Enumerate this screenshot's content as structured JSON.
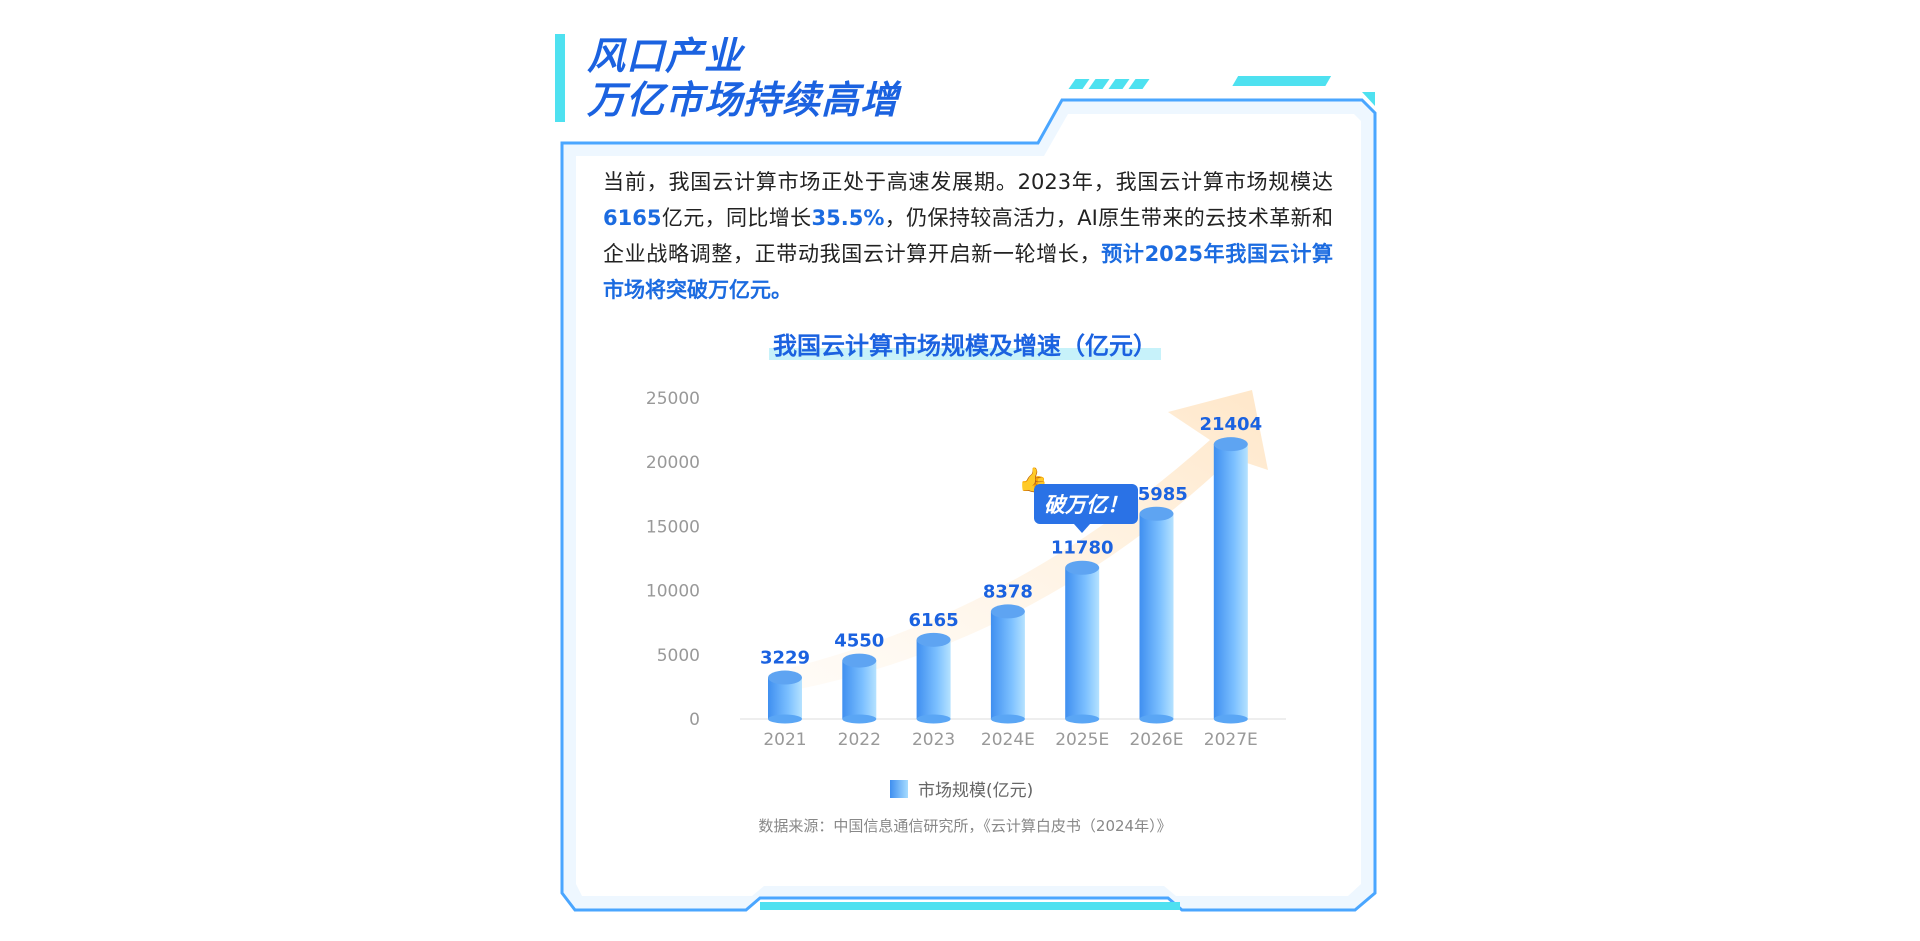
{
  "headline": {
    "line1": "风口产业",
    "line2": "万亿市场持续高增"
  },
  "intro": {
    "p1": "当前，我国云计算市场正处于高速发展期。2023年，我国云计算市场规模达",
    "v1": "6165",
    "p2": "亿元，同比增长",
    "v2": "35.5%",
    "p3": "，仍保持较高活力，AI原生带来的云技术革新和企业战略调整，正带动我国云计算开启新一轮增长，",
    "v3": "预计2025年我国云计算市场将突破万亿元。"
  },
  "badge": "破万亿！",
  "source": "数据来源：中国信息通信研究所，《云计算白皮书（2024年）》",
  "colors": {
    "accent": "#1b62e0",
    "cyan": "#4ee1f0",
    "bar_dark": "#3f8ff0",
    "bar_light": "#a7dcff"
  },
  "icons": {
    "badge": "thumbs-up-icon"
  },
  "chart_data": {
    "type": "bar",
    "title": "我国云计算市场规模及增速（亿元）",
    "categories": [
      "2021",
      "2022",
      "2023",
      "2024E",
      "2025E",
      "2026E",
      "2027E"
    ],
    "series": [
      {
        "name": "市场规模(亿元)",
        "values": [
          3229,
          4550,
          6165,
          8378,
          11780,
          15985,
          21404
        ]
      }
    ],
    "ylim": [
      0,
      25000
    ],
    "yticks": [
      0,
      5000,
      10000,
      15000,
      20000,
      25000
    ],
    "grid": false,
    "legend": "bottom"
  }
}
